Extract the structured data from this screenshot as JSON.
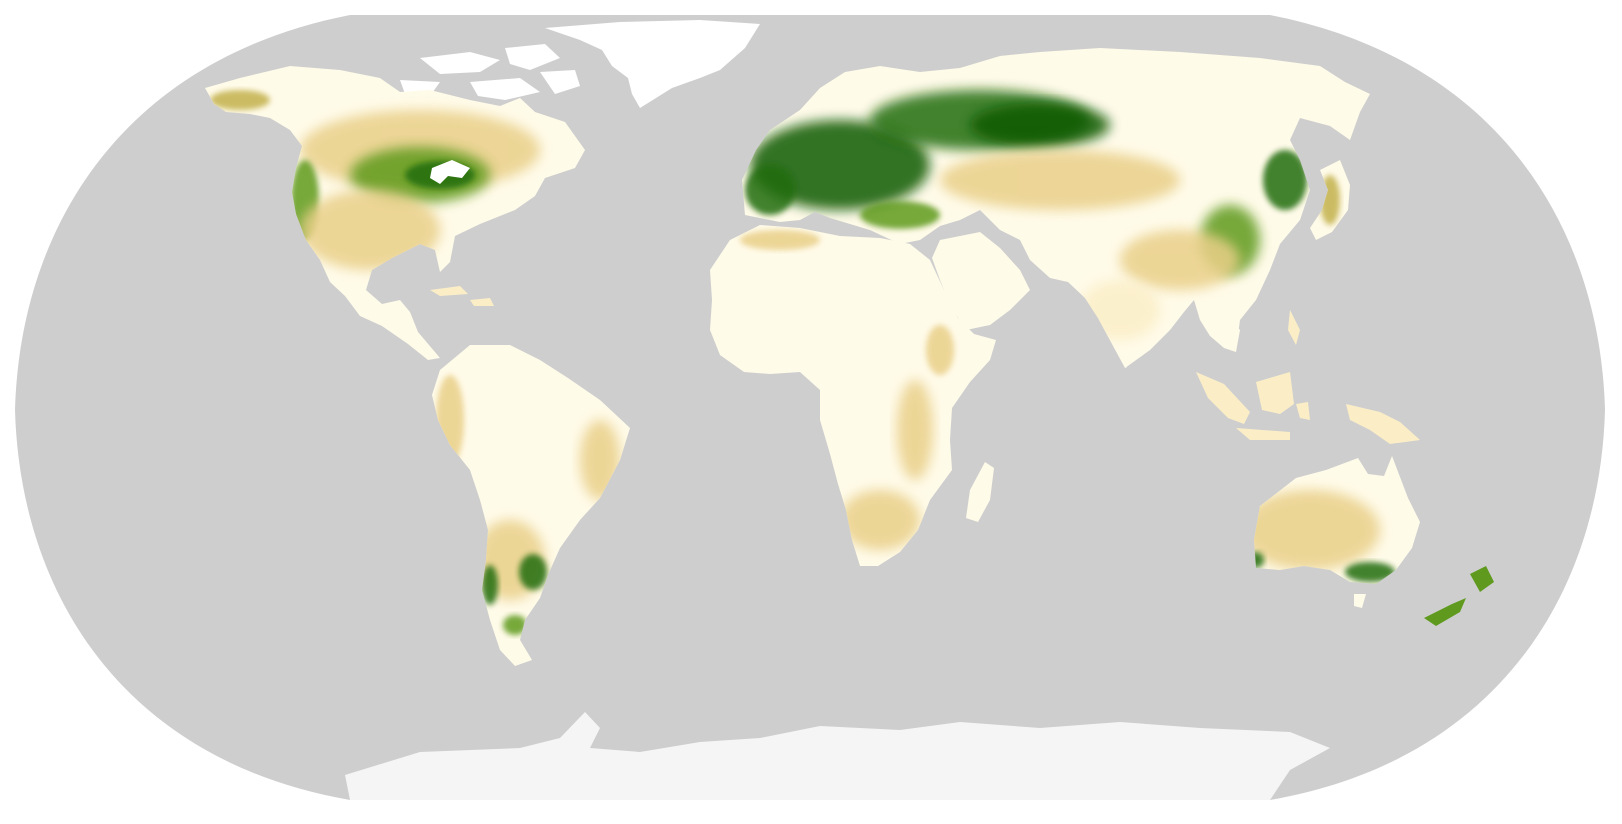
{
  "map": {
    "projection": "robinson",
    "colors": {
      "page_background": "#ffffff",
      "ocean": "#cecece",
      "antarctica": "#f5f5f5",
      "ice_sheet": "#ffffff",
      "land_low": "#fffbe9",
      "land_light": "#fbeec7",
      "land_tan": "#e9cf88",
      "land_olive": "#c2b04c",
      "land_green": "#5f9a1f",
      "land_dark_green": "#246d0b",
      "land_deepest_green": "#0f5a06"
    },
    "value_scale": {
      "order": [
        "land_low",
        "land_light",
        "land_tan",
        "land_olive",
        "land_green",
        "land_dark_green",
        "land_deepest_green"
      ],
      "levels": 7
    },
    "high_value_regions": [
      "europe",
      "western-russia",
      "siberia-west",
      "eastern-north-america",
      "great-lakes",
      "pacific-northwest",
      "east-china",
      "northeast-china-korea",
      "japan",
      "uruguay-pampas",
      "southern-chile",
      "southeast-australia",
      "southwest-australia",
      "new-zealand"
    ],
    "low_value_regions": [
      "sahara",
      "arabia",
      "amazon-basin",
      "central-africa",
      "tibetan-plateau",
      "central-australia"
    ],
    "ice_regions": [
      "greenland",
      "antarctica",
      "canadian-arctic-islands"
    ]
  }
}
